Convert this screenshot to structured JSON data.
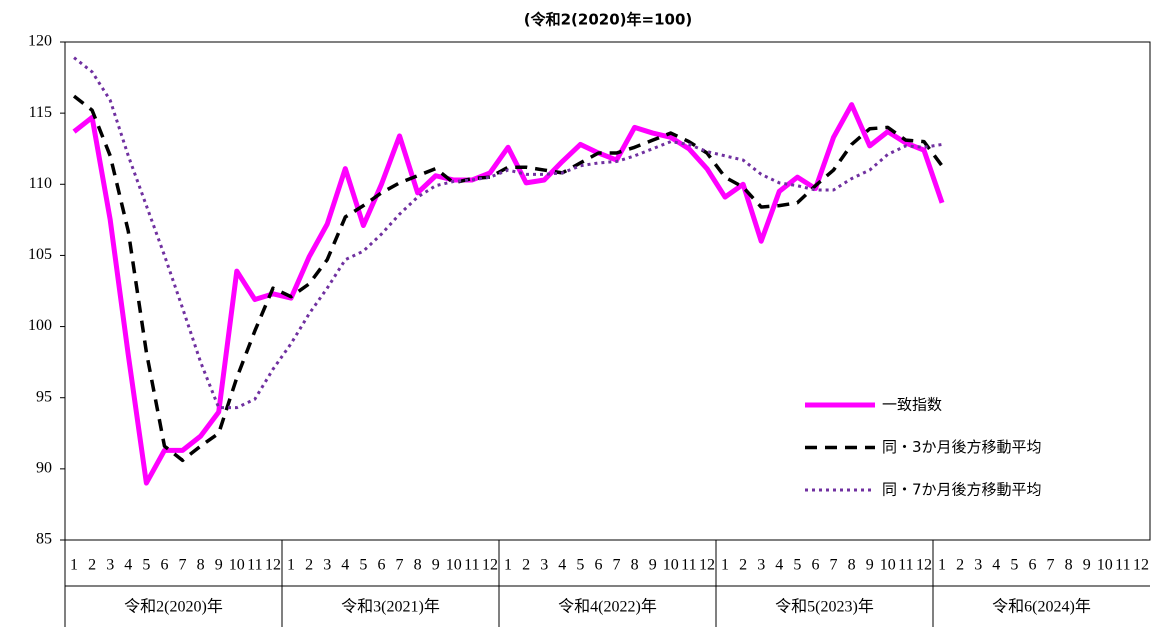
{
  "chart_data": {
    "type": "line",
    "title": "(令和2(2020)年=100)",
    "categories": [
      "1",
      "2",
      "3",
      "4",
      "5",
      "6",
      "7",
      "8",
      "9",
      "10",
      "11",
      "12",
      "1",
      "2",
      "3",
      "4",
      "5",
      "6",
      "7",
      "8",
      "9",
      "10",
      "11",
      "12",
      "1",
      "2",
      "3",
      "4",
      "5",
      "6",
      "7",
      "8",
      "9",
      "10",
      "11",
      "12",
      "1",
      "2",
      "3",
      "4",
      "5",
      "6",
      "7",
      "8",
      "9",
      "10",
      "11",
      "12",
      "1",
      "2",
      "3",
      "4",
      "5",
      "6",
      "7",
      "8",
      "9",
      "10",
      "11",
      "12"
    ],
    "x_groups": [
      "令和2(2020)年",
      "令和3(2021)年",
      "令和4(2022)年",
      "令和5(2023)年",
      "令和6(2024)年"
    ],
    "ylim": [
      85,
      120
    ],
    "yticks": [
      85,
      90,
      95,
      100,
      105,
      110,
      115,
      120
    ],
    "series": [
      {
        "name": "一致指数",
        "color": "#ff00ff",
        "style": "solid",
        "values": [
          113.7,
          114.7,
          107.5,
          98.0,
          89.0,
          91.3,
          91.3,
          92.3,
          94.0,
          103.9,
          101.9,
          102.3,
          102.0,
          104.9,
          107.2,
          111.1,
          107.1,
          110.0,
          113.4,
          109.4,
          110.6,
          110.3,
          110.3,
          110.8,
          112.6,
          110.1,
          110.3,
          111.6,
          112.8,
          112.2,
          111.7,
          114.0,
          113.6,
          113.3,
          112.5,
          111.1,
          109.1,
          110.0,
          106.0,
          109.5,
          110.5,
          109.7,
          113.3,
          115.6,
          112.7,
          113.7,
          112.9,
          112.4,
          108.7,
          null,
          null,
          null,
          null,
          null,
          null,
          null,
          null,
          null,
          null,
          null
        ]
      },
      {
        "name": "同・3か月後方移動平均",
        "color": "#000000",
        "style": "dashed",
        "values": [
          116.2,
          115.2,
          112.0,
          106.7,
          98.2,
          91.6,
          90.6,
          91.6,
          92.5,
          96.4,
          99.7,
          102.7,
          102.1,
          103.0,
          104.7,
          107.7,
          108.5,
          109.4,
          110.1,
          110.6,
          111.1,
          110.1,
          110.4,
          110.5,
          111.2,
          111.2,
          111.0,
          110.8,
          111.5,
          112.2,
          112.2,
          112.6,
          113.1,
          113.6,
          113.0,
          112.2,
          110.5,
          109.8,
          108.4,
          108.5,
          108.7,
          109.9,
          111.0,
          112.8,
          113.9,
          114.0,
          113.1,
          113.0,
          111.3,
          null,
          null,
          null,
          null,
          null,
          null,
          null,
          null,
          null,
          null,
          null
        ]
      },
      {
        "name": "同・7か月後方移動平均",
        "color": "#7030a0",
        "style": "dotted",
        "values": [
          118.9,
          117.9,
          115.9,
          112.0,
          108.5,
          105.0,
          101.3,
          97.5,
          94.3,
          94.3,
          94.9,
          97.0,
          98.8,
          100.9,
          102.7,
          104.7,
          105.3,
          106.5,
          107.9,
          109.1,
          109.9,
          110.2,
          110.3,
          110.5,
          111.0,
          110.7,
          110.7,
          110.8,
          111.3,
          111.5,
          111.6,
          112.0,
          112.5,
          113.0,
          112.8,
          112.3,
          112.0,
          111.7,
          110.7,
          110.1,
          109.9,
          109.6,
          109.6,
          110.4,
          111.0,
          112.1,
          112.7,
          112.6,
          112.8,
          null,
          null,
          null,
          null,
          null,
          null,
          null,
          null,
          null,
          null,
          null
        ]
      }
    ]
  }
}
